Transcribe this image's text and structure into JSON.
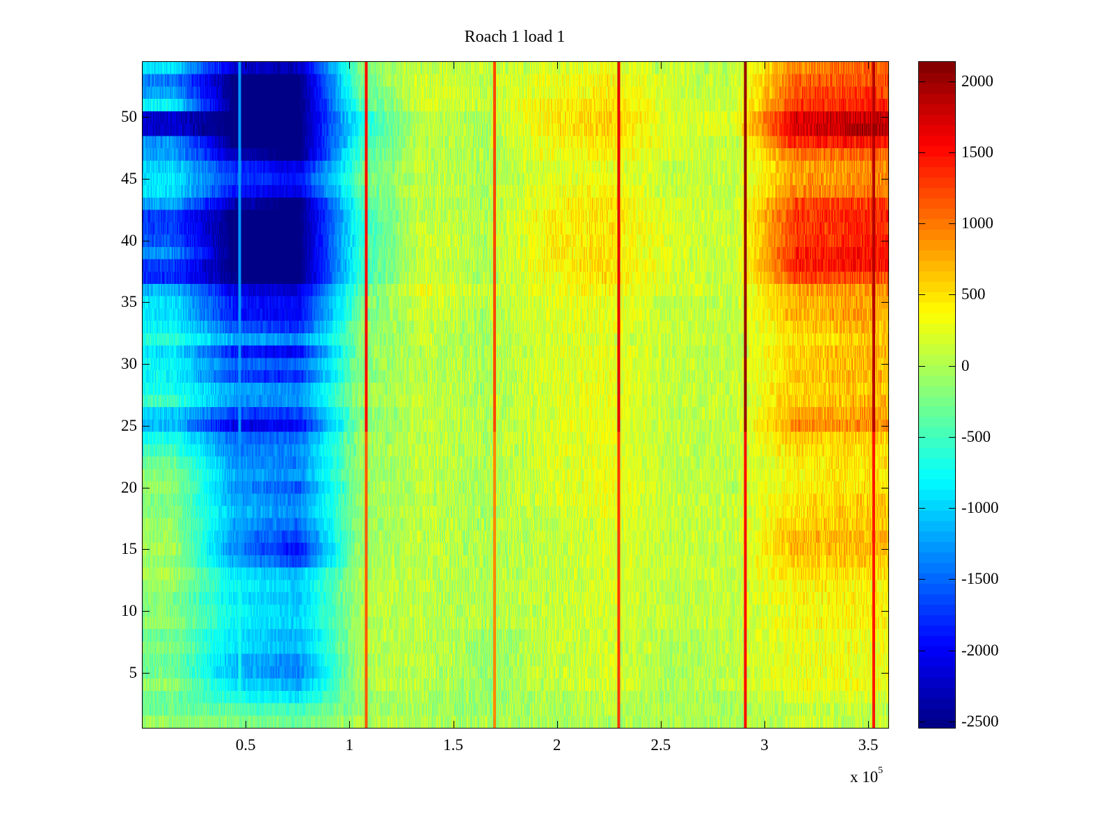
{
  "chart_data": {
    "type": "heatmap",
    "title": "Roach 1 load 1",
    "xlabel": "",
    "ylabel": "",
    "x_multiplier_label": "x 10",
    "x_multiplier_exponent": "5",
    "xlim": [
      0,
      3.6
    ],
    "ylim": [
      0.5,
      54.5
    ],
    "x_ticks": [
      0.5,
      1,
      1.5,
      2,
      2.5,
      3,
      3.5
    ],
    "x_tick_labels": [
      "0.5",
      "1",
      "1.5",
      "2",
      "2.5",
      "3",
      "3.5"
    ],
    "y_ticks": [
      5,
      10,
      15,
      20,
      25,
      30,
      35,
      40,
      45,
      50
    ],
    "y_tick_labels": [
      "5",
      "10",
      "15",
      "20",
      "25",
      "30",
      "35",
      "40",
      "45",
      "50"
    ],
    "colormap": "jet",
    "colormap_levels": 64,
    "clim": [
      -2550,
      2140
    ],
    "colorbar_ticks": [
      2000,
      1500,
      1000,
      500,
      0,
      -500,
      -1000,
      -1500,
      -2000,
      -2500
    ],
    "colorbar_tick_labels": [
      "2000",
      "1500",
      "1000",
      "500",
      "0",
      "-500",
      "-1000",
      "-1500",
      "-2000",
      "-2500"
    ],
    "grid": false,
    "x_bin_centers": [
      0.15,
      0.45,
      0.75,
      1.05,
      1.35,
      1.65,
      1.95,
      2.25,
      2.55,
      2.85,
      3.15,
      3.45
    ],
    "rows_top_to_bottom_y": "54..1",
    "z": [
      [
        -900,
        -2200,
        -2300,
        -200,
        100,
        100,
        200,
        300,
        100,
        100,
        900,
        1100
      ],
      [
        -1400,
        -2600,
        -2600,
        -300,
        200,
        100,
        300,
        400,
        200,
        100,
        1100,
        1200
      ],
      [
        -1200,
        -2600,
        -2600,
        -400,
        200,
        100,
        300,
        400,
        200,
        100,
        1200,
        1300
      ],
      [
        -800,
        -2600,
        -2600,
        -500,
        200,
        100,
        400,
        500,
        200,
        100,
        1300,
        1400
      ],
      [
        -2200,
        -2600,
        -2600,
        -700,
        100,
        0,
        400,
        600,
        200,
        200,
        1700,
        1800
      ],
      [
        -2200,
        -2600,
        -2600,
        -700,
        100,
        0,
        400,
        600,
        200,
        200,
        1700,
        1900
      ],
      [
        -1300,
        -2600,
        -2600,
        -600,
        100,
        0,
        300,
        500,
        200,
        100,
        1400,
        1500
      ],
      [
        -1200,
        -2300,
        -2600,
        -500,
        100,
        0,
        300,
        400,
        200,
        100,
        1000,
        1100
      ],
      [
        -1000,
        -1800,
        -2100,
        -400,
        100,
        0,
        200,
        300,
        100,
        100,
        800,
        900
      ],
      [
        -900,
        -1700,
        -1900,
        -300,
        100,
        0,
        200,
        300,
        100,
        100,
        800,
        900
      ],
      [
        -900,
        -1900,
        -2100,
        -400,
        100,
        0,
        300,
        400,
        100,
        100,
        900,
        1000
      ],
      [
        -1200,
        -2300,
        -2600,
        -500,
        100,
        0,
        300,
        500,
        200,
        100,
        1200,
        1300
      ],
      [
        -1700,
        -2600,
        -2600,
        -600,
        100,
        0,
        400,
        500,
        200,
        100,
        1300,
        1400
      ],
      [
        -1700,
        -2600,
        -2600,
        -600,
        200,
        0,
        400,
        500,
        200,
        100,
        1300,
        1400
      ],
      [
        -1600,
        -2600,
        -2600,
        -600,
        200,
        0,
        400,
        500,
        200,
        100,
        1300,
        1400
      ],
      [
        -1300,
        -2600,
        -2600,
        -600,
        200,
        0,
        400,
        500,
        200,
        100,
        1400,
        1500
      ],
      [
        -1700,
        -2600,
        -2600,
        -600,
        200,
        0,
        400,
        500,
        200,
        100,
        1400,
        1500
      ],
      [
        -1800,
        -2500,
        -2600,
        -600,
        200,
        0,
        300,
        500,
        200,
        100,
        1200,
        1200
      ],
      [
        -1100,
        -2100,
        -2200,
        -400,
        300,
        100,
        300,
        400,
        200,
        100,
        800,
        900
      ],
      [
        -900,
        -1900,
        -2000,
        -300,
        200,
        0,
        200,
        300,
        100,
        100,
        700,
        800
      ],
      [
        -900,
        -1900,
        -2000,
        -300,
        200,
        0,
        200,
        300,
        100,
        100,
        700,
        800
      ],
      [
        -800,
        -1600,
        -1800,
        -200,
        100,
        0,
        200,
        300,
        100,
        100,
        600,
        700
      ],
      [
        -600,
        -1200,
        -1300,
        -200,
        100,
        0,
        200,
        200,
        100,
        100,
        500,
        600
      ],
      [
        -900,
        -1900,
        -2000,
        -200,
        100,
        0,
        200,
        300,
        100,
        100,
        600,
        700
      ],
      [
        -800,
        -1500,
        -1500,
        -200,
        100,
        0,
        200,
        300,
        100,
        100,
        600,
        700
      ],
      [
        -800,
        -1700,
        -1800,
        -200,
        100,
        0,
        200,
        300,
        100,
        100,
        600,
        700
      ],
      [
        -700,
        -1200,
        -1300,
        -100,
        100,
        0,
        200,
        300,
        100,
        100,
        600,
        600
      ],
      [
        -500,
        -1300,
        -1300,
        -100,
        100,
        0,
        200,
        300,
        100,
        100,
        600,
        700
      ],
      [
        -1000,
        -1700,
        -1700,
        -200,
        100,
        0,
        200,
        300,
        100,
        100,
        800,
        800
      ],
      [
        -1100,
        -2100,
        -2000,
        -200,
        100,
        0,
        200,
        300,
        100,
        100,
        900,
        900
      ],
      [
        -700,
        -1500,
        -1500,
        -100,
        100,
        0,
        200,
        300,
        100,
        100,
        600,
        600
      ],
      [
        -500,
        -1400,
        -1300,
        -100,
        100,
        0,
        200,
        300,
        100,
        100,
        500,
        500
      ],
      [
        -300,
        -1300,
        -1400,
        -100,
        100,
        0,
        200,
        300,
        100,
        100,
        400,
        500
      ],
      [
        -200,
        -1200,
        -1300,
        -100,
        100,
        0,
        200,
        300,
        100,
        100,
        400,
        500
      ],
      [
        -100,
        -1300,
        -1600,
        -100,
        100,
        0,
        200,
        300,
        100,
        100,
        400,
        500
      ],
      [
        -200,
        -1200,
        -1400,
        -100,
        100,
        0,
        200,
        300,
        100,
        100,
        500,
        600
      ],
      [
        -200,
        -1100,
        -1300,
        -100,
        100,
        0,
        100,
        300,
        100,
        100,
        500,
        600
      ],
      [
        -100,
        -1200,
        -1500,
        -100,
        100,
        0,
        100,
        200,
        100,
        100,
        600,
        600
      ],
      [
        -100,
        -1300,
        -1700,
        -100,
        100,
        0,
        100,
        200,
        100,
        100,
        700,
        700
      ],
      [
        0,
        -1400,
        -1900,
        -100,
        100,
        0,
        100,
        200,
        100,
        100,
        700,
        700
      ],
      [
        -100,
        -1200,
        -1700,
        -100,
        100,
        0,
        100,
        200,
        100,
        100,
        600,
        600
      ],
      [
        0,
        -900,
        -1100,
        0,
        100,
        0,
        100,
        200,
        100,
        100,
        500,
        500
      ],
      [
        -100,
        -800,
        -1000,
        0,
        100,
        0,
        100,
        200,
        100,
        100,
        400,
        400
      ],
      [
        -200,
        -900,
        -1100,
        0,
        100,
        0,
        100,
        200,
        100,
        100,
        400,
        400
      ],
      [
        -200,
        -800,
        -1000,
        0,
        100,
        0,
        100,
        200,
        100,
        100,
        300,
        400
      ],
      [
        -100,
        -800,
        -1000,
        0,
        100,
        0,
        100,
        200,
        100,
        100,
        400,
        400
      ],
      [
        -300,
        -900,
        -1200,
        0,
        100,
        -100,
        100,
        200,
        0,
        100,
        300,
        300
      ],
      [
        -200,
        -900,
        -1100,
        0,
        100,
        -100,
        100,
        200,
        0,
        100,
        300,
        300
      ],
      [
        -300,
        -1100,
        -1300,
        0,
        100,
        -100,
        100,
        200,
        0,
        100,
        300,
        300
      ],
      [
        -300,
        -1100,
        -1400,
        0,
        100,
        -100,
        100,
        200,
        0,
        100,
        300,
        300
      ],
      [
        -100,
        -900,
        -1200,
        0,
        100,
        -100,
        100,
        200,
        0,
        100,
        300,
        300
      ],
      [
        -300,
        -700,
        -900,
        -100,
        0,
        -100,
        0,
        100,
        0,
        0,
        200,
        200
      ],
      [
        -300,
        -400,
        -500,
        -100,
        0,
        -100,
        0,
        100,
        0,
        0,
        100,
        100
      ],
      [
        -100,
        -200,
        -300,
        0,
        0,
        0,
        0,
        0,
        0,
        0,
        100,
        100
      ]
    ],
    "vertical_streaks": [
      {
        "x": 0.47,
        "value": -1300
      },
      {
        "x": 1.08,
        "value": 1500
      },
      {
        "x": 1.7,
        "value": 1200
      },
      {
        "x": 2.3,
        "value": 1700
      },
      {
        "x": 2.91,
        "value": 2000
      },
      {
        "x": 3.53,
        "value": 1900
      }
    ]
  }
}
